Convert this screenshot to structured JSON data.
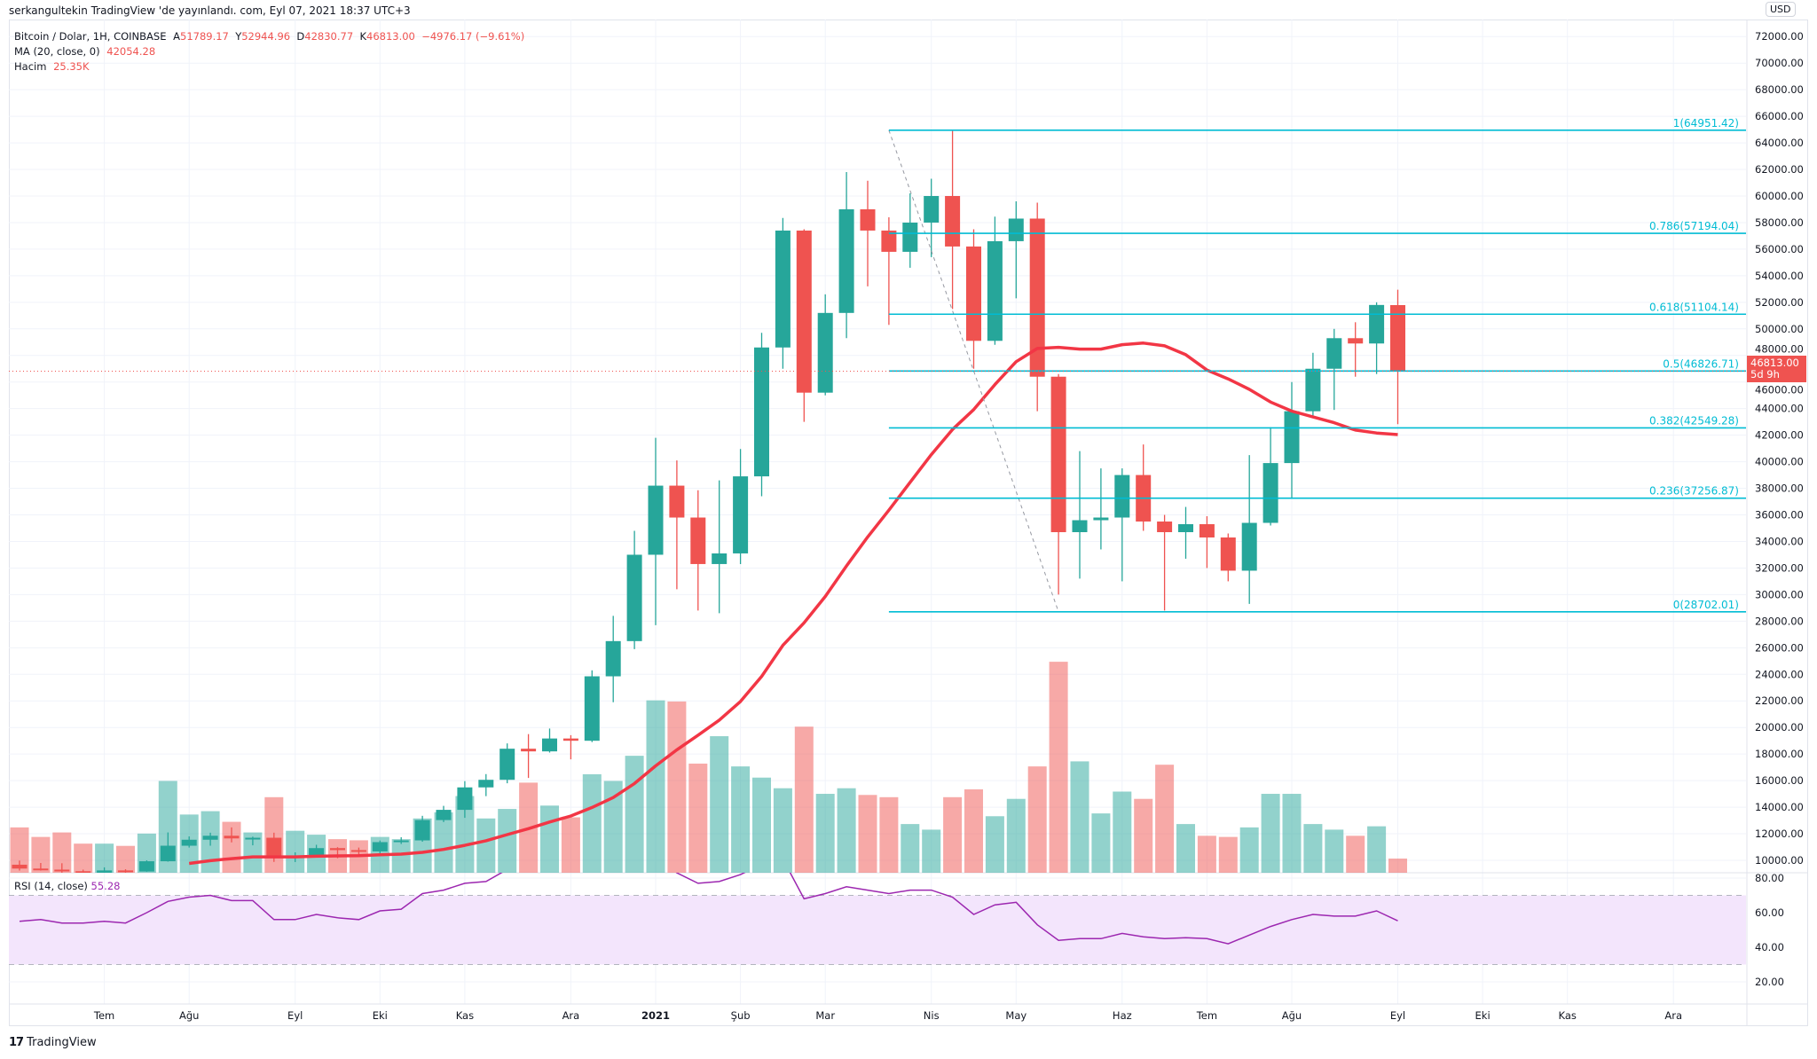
{
  "header": {
    "published": "serkangultekin TradingView 'de yayınlandı. com, Eyl 07, 2021 18:37 UTC+3"
  },
  "legend": {
    "symbol": "Bitcoin / Dolar, 1H, COINBASE",
    "open_label": "A",
    "open": "51789.17",
    "high_label": "Y",
    "high": "52944.96",
    "low_label": "D",
    "low": "42830.77",
    "close_label": "K",
    "close": "46813.00",
    "change": "−4976.17 (−9.61%)",
    "ma_label": "MA (20, close, 0)",
    "ma_value": "42054.28",
    "volume_label": "Hacim",
    "volume_value": "25.35K",
    "rsi_label": "RSI (14, close)",
    "rsi_value": "55.28"
  },
  "price_axis": {
    "currency": "USD",
    "last_price": "46813.00",
    "countdown": "5d 9h"
  },
  "branding": {
    "logo_text": "TradingView"
  },
  "colors": {
    "up": "#26a69a",
    "down": "#ef5350",
    "ma": "#f23645",
    "fib": "#00bcd4",
    "rsi": "#9c27b0",
    "rsi_band": "#f3e5fc"
  },
  "chart_data": {
    "type": "candlestick",
    "ylim": [
      9000,
      73000
    ],
    "yticks": [
      10000,
      12000,
      14000,
      16000,
      18000,
      20000,
      22000,
      24000,
      26000,
      28000,
      30000,
      32000,
      34000,
      36000,
      38000,
      40000,
      42000,
      44000,
      46000,
      48000,
      50000,
      52000,
      54000,
      56000,
      58000,
      60000,
      62000,
      64000,
      66000,
      68000,
      70000,
      72000
    ],
    "ytick_decimals": 2,
    "grid": true,
    "start": "2020-06-08",
    "xticks": [
      {
        "label": "Tem",
        "t": "2020-07-06"
      },
      {
        "label": "Ağu",
        "t": "2020-08-03"
      },
      {
        "label": "Eyl",
        "t": "2020-09-07"
      },
      {
        "label": "Eki",
        "t": "2020-10-05"
      },
      {
        "label": "Kas",
        "t": "2020-11-02"
      },
      {
        "label": "Ara",
        "t": "2020-12-07"
      },
      {
        "label": "2021",
        "t": "2021-01-04"
      },
      {
        "label": "Şub",
        "t": "2021-02-01"
      },
      {
        "label": "Mar",
        "t": "2021-03-01"
      },
      {
        "label": "Nis",
        "t": "2021-04-05"
      },
      {
        "label": "May",
        "t": "2021-05-03"
      },
      {
        "label": "Haz",
        "t": "2021-06-07"
      },
      {
        "label": "Tem",
        "t": "2021-07-05"
      },
      {
        "label": "Ağu",
        "t": "2021-08-02"
      },
      {
        "label": "Eyl",
        "t": "2021-09-06"
      },
      {
        "label": "Eki",
        "t": "2021-10-04"
      },
      {
        "label": "Kas",
        "t": "2021-11-01"
      },
      {
        "label": "Ara",
        "t": "2021-12-06"
      }
    ],
    "candles": [
      [
        9670,
        9980,
        9230,
        9380
      ],
      [
        9380,
        9800,
        9230,
        9300
      ],
      [
        9300,
        9780,
        8830,
        9180
      ],
      [
        9180,
        9300,
        8900,
        9070
      ],
      [
        9070,
        9470,
        9050,
        9240
      ],
      [
        9240,
        9330,
        9010,
        9160
      ],
      [
        9160,
        10000,
        9140,
        9930
      ],
      [
        9930,
        12100,
        9900,
        11100
      ],
      [
        11100,
        11800,
        10960,
        11550
      ],
      [
        11550,
        12080,
        11100,
        11850
      ],
      [
        11850,
        12480,
        11350,
        11650
      ],
      [
        11650,
        11780,
        11130,
        11700
      ],
      [
        11700,
        12080,
        9880,
        10250
      ],
      [
        10250,
        10600,
        9870,
        10330
      ],
      [
        10330,
        11170,
        10220,
        10920
      ],
      [
        10920,
        10990,
        10160,
        10770
      ],
      [
        10770,
        10960,
        10370,
        10670
      ],
      [
        10670,
        11490,
        10530,
        11370
      ],
      [
        11370,
        11740,
        11230,
        11500
      ],
      [
        11500,
        13350,
        11400,
        13030
      ],
      [
        13030,
        14100,
        12880,
        13800
      ],
      [
        13800,
        15960,
        13200,
        15490
      ],
      [
        15490,
        16490,
        14830,
        16060
      ],
      [
        16060,
        18800,
        15800,
        18400
      ],
      [
        18400,
        19500,
        16200,
        18200
      ],
      [
        18200,
        19920,
        18110,
        19170
      ],
      [
        19170,
        19420,
        17600,
        19000
      ],
      [
        19000,
        24300,
        18900,
        23850
      ],
      [
        23850,
        28400,
        21900,
        26500
      ],
      [
        26500,
        34800,
        25900,
        33000
      ],
      [
        33000,
        41800,
        27700,
        38200
      ],
      [
        38200,
        40100,
        30400,
        35800
      ],
      [
        35800,
        37850,
        28800,
        32300
      ],
      [
        32300,
        38600,
        28600,
        33100
      ],
      [
        33100,
        40960,
        32300,
        38900
      ],
      [
        38900,
        49700,
        37400,
        48600
      ],
      [
        48600,
        58350,
        47000,
        57400
      ],
      [
        57400,
        57500,
        43000,
        45200
      ],
      [
        45200,
        52600,
        45000,
        51200
      ],
      [
        51200,
        61800,
        49300,
        59000
      ],
      [
        59000,
        61150,
        53200,
        57400
      ],
      [
        57400,
        58400,
        50300,
        55800
      ],
      [
        55800,
        60200,
        54600,
        58000
      ],
      [
        58000,
        61300,
        55400,
        60000
      ],
      [
        60000,
        64900,
        51500,
        56200
      ],
      [
        56200,
        57500,
        47000,
        49100
      ],
      [
        49100,
        58450,
        48800,
        56600
      ],
      [
        56600,
        59600,
        52300,
        58300
      ],
      [
        58300,
        59500,
        43800,
        46400
      ],
      [
        46400,
        46600,
        30000,
        34700
      ],
      [
        34700,
        40800,
        31200,
        35600
      ],
      [
        35600,
        39500,
        33400,
        35800
      ],
      [
        35800,
        39500,
        31000,
        39000
      ],
      [
        39000,
        41300,
        34800,
        35500
      ],
      [
        35500,
        36000,
        28800,
        34700
      ],
      [
        34700,
        36600,
        32700,
        35300
      ],
      [
        35300,
        35900,
        32000,
        34300
      ],
      [
        34300,
        34600,
        31000,
        31800
      ],
      [
        31800,
        40500,
        29300,
        35400
      ],
      [
        35400,
        42600,
        35200,
        39900
      ],
      [
        39900,
        46000,
        37300,
        43800
      ],
      [
        43800,
        48200,
        43300,
        47000
      ],
      [
        47000,
        50000,
        43900,
        49300
      ],
      [
        49300,
        50500,
        46400,
        48900
      ],
      [
        48900,
        52000,
        46600,
        51800
      ],
      [
        51789.17,
        52944.96,
        42830.77,
        46813.0
      ]
    ],
    "volume_k": [
      81,
      64,
      72,
      52,
      52,
      48,
      70,
      164,
      104,
      110,
      91,
      72,
      135,
      75,
      68,
      60,
      58,
      64,
      60,
      97,
      108,
      137,
      97,
      114,
      161,
      120,
      99,
      176,
      164,
      209,
      308,
      306,
      195,
      244,
      190,
      170,
      151,
      261,
      141,
      151,
      139,
      135,
      87,
      77,
      135,
      149,
      101,
      132,
      190,
      377,
      199,
      106,
      145,
      132,
      193,
      87,
      66,
      64,
      81,
      141,
      141,
      87,
      77,
      66,
      83,
      25.35
    ],
    "ma_period": 20,
    "rsi": {
      "ylim": [
        10,
        83
      ],
      "yticks": [
        20,
        40,
        60,
        80
      ],
      "band": [
        30,
        70
      ],
      "values": [
        55,
        56,
        54,
        54,
        55,
        54,
        60,
        66.5,
        69,
        70,
        67,
        67,
        56,
        56,
        59,
        57,
        56,
        61,
        62,
        71,
        73,
        77,
        78,
        85,
        84,
        85,
        84,
        88,
        90,
        92,
        93,
        83,
        77,
        78,
        82,
        88,
        91,
        68,
        71,
        75,
        73,
        71,
        73,
        73,
        69,
        59,
        64.5,
        66,
        53,
        44,
        45,
        45,
        48,
        46,
        45,
        45.5,
        45,
        42,
        47,
        52,
        56,
        59,
        58,
        58,
        61,
        55.28
      ]
    },
    "fib": {
      "start": "2021-03-22",
      "end": "2021-05-17",
      "from": 64951.42,
      "to": 28702.01,
      "levels": [
        {
          "label": "1(64951.42)",
          "value": 64951.42
        },
        {
          "label": "0.786(57194.04)",
          "value": 57194.04
        },
        {
          "label": "0.618(51104.14)",
          "value": 51104.14
        },
        {
          "label": "0.5(46826.71)",
          "value": 46826.71
        },
        {
          "label": "0.382(42549.28)",
          "value": 42549.28
        },
        {
          "label": "0.236(37256.87)",
          "value": 37256.87
        },
        {
          "label": "0(28702.01)",
          "value": 28702.01
        }
      ]
    }
  }
}
